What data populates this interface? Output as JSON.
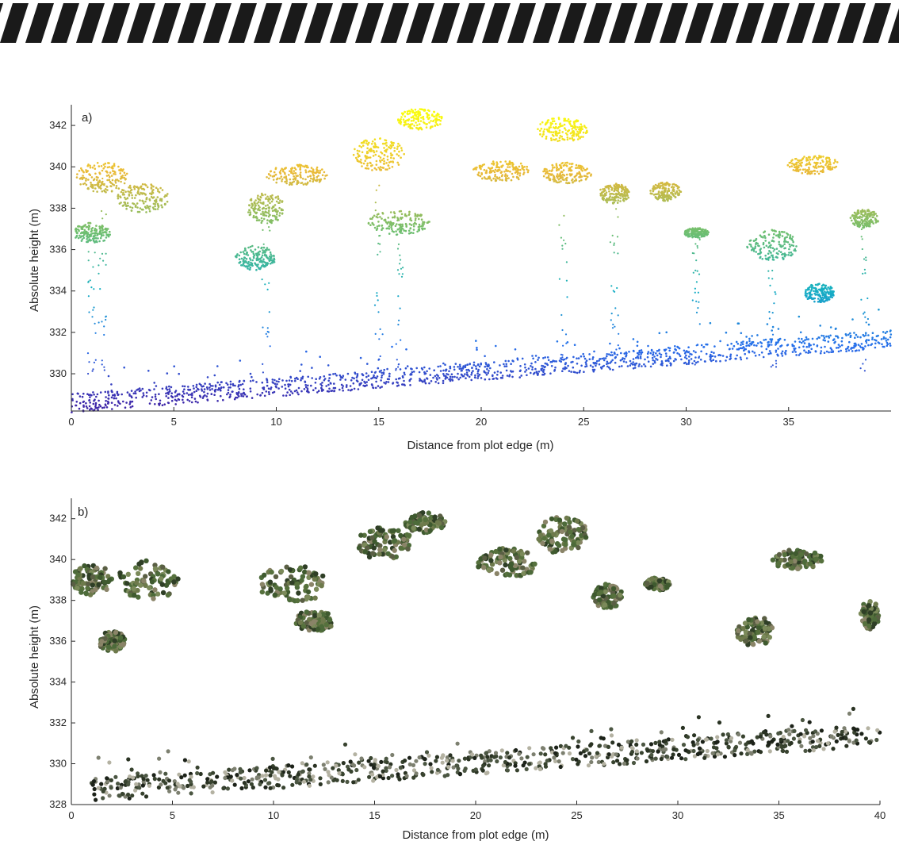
{
  "colors": {
    "banner_stripe": "#1a1a1a",
    "axis": "#262626",
    "low_colormap": "#3e26a8",
    "mid_colormap": "#16b0c2",
    "high_colormap": "#f9fb0e",
    "foliage": "#4a6a35",
    "dark_understory": "#1f261c"
  },
  "chart_data": [
    {
      "panel_label": "a)",
      "type": "scatter",
      "description_type": "point cloud cross-section colored by height (parula colormap)",
      "xlabel": "Distance from plot edge (m)",
      "ylabel": "Absolute height (m)",
      "xlim": [
        0,
        40
      ],
      "ylim": [
        328.2,
        343
      ],
      "x_ticks": [
        0,
        5,
        10,
        15,
        20,
        25,
        30,
        35
      ],
      "y_ticks": [
        330,
        332,
        334,
        336,
        338,
        340,
        342
      ],
      "colormap": "parula",
      "ground_line": {
        "x": [
          0,
          40
        ],
        "y": [
          328.4,
          331.5
        ]
      },
      "canopy_clusters": [
        {
          "x": 1.5,
          "y": 339.5,
          "w": 2.5,
          "h": 1.5
        },
        {
          "x": 3.5,
          "y": 338.5,
          "w": 2.5,
          "h": 1.4
        },
        {
          "x": 1.0,
          "y": 336.8,
          "w": 1.8,
          "h": 1.0
        },
        {
          "x": 11.0,
          "y": 339.6,
          "w": 3.0,
          "h": 1.0
        },
        {
          "x": 9.5,
          "y": 338.0,
          "w": 1.8,
          "h": 1.5
        },
        {
          "x": 9.0,
          "y": 335.6,
          "w": 2.0,
          "h": 1.2
        },
        {
          "x": 15.0,
          "y": 340.6,
          "w": 2.5,
          "h": 1.6
        },
        {
          "x": 17.0,
          "y": 342.3,
          "w": 2.3,
          "h": 1.0
        },
        {
          "x": 16.0,
          "y": 337.3,
          "w": 3.0,
          "h": 1.2
        },
        {
          "x": 21.0,
          "y": 339.8,
          "w": 2.8,
          "h": 1.0
        },
        {
          "x": 24.0,
          "y": 341.8,
          "w": 2.5,
          "h": 1.2
        },
        {
          "x": 24.2,
          "y": 339.7,
          "w": 2.4,
          "h": 1.0
        },
        {
          "x": 26.5,
          "y": 338.7,
          "w": 1.5,
          "h": 1.0
        },
        {
          "x": 29.0,
          "y": 338.8,
          "w": 1.5,
          "h": 0.9
        },
        {
          "x": 30.5,
          "y": 336.8,
          "w": 1.2,
          "h": 0.5
        },
        {
          "x": 36.2,
          "y": 340.1,
          "w": 2.5,
          "h": 0.9
        },
        {
          "x": 34.2,
          "y": 336.2,
          "w": 2.5,
          "h": 1.5
        },
        {
          "x": 36.5,
          "y": 333.9,
          "w": 1.5,
          "h": 0.9
        },
        {
          "x": 38.7,
          "y": 337.5,
          "w": 1.4,
          "h": 0.9
        }
      ]
    },
    {
      "panel_label": "b)",
      "type": "scatter",
      "description_type": "photogrammetric point cloud cross-section in true color",
      "xlabel": "Distance from plot edge (m)",
      "ylabel": "Absolute height (m)",
      "xlim": [
        0,
        40
      ],
      "ylim": [
        328,
        343
      ],
      "x_ticks": [
        0,
        5,
        10,
        15,
        20,
        25,
        30,
        35,
        40
      ],
      "y_ticks": [
        328,
        330,
        332,
        334,
        336,
        338,
        340,
        342
      ],
      "ground_line": {
        "x": [
          1,
          40
        ],
        "y": [
          328.5,
          331.2
        ]
      },
      "canopy_clusters": [
        {
          "x": 1.0,
          "y": 339.0,
          "w": 2.0,
          "h": 1.5
        },
        {
          "x": 3.8,
          "y": 339.0,
          "w": 3.0,
          "h": 2.0
        },
        {
          "x": 2.0,
          "y": 336.0,
          "w": 1.3,
          "h": 1.0
        },
        {
          "x": 11.0,
          "y": 338.8,
          "w": 3.5,
          "h": 1.8
        },
        {
          "x": 12.0,
          "y": 337.0,
          "w": 2.0,
          "h": 1.0
        },
        {
          "x": 15.5,
          "y": 340.8,
          "w": 2.8,
          "h": 1.6
        },
        {
          "x": 17.5,
          "y": 341.8,
          "w": 2.0,
          "h": 1.0
        },
        {
          "x": 21.5,
          "y": 339.8,
          "w": 3.0,
          "h": 1.5
        },
        {
          "x": 24.3,
          "y": 341.2,
          "w": 2.5,
          "h": 1.8
        },
        {
          "x": 26.5,
          "y": 338.2,
          "w": 1.5,
          "h": 1.2
        },
        {
          "x": 29.0,
          "y": 338.8,
          "w": 1.2,
          "h": 0.6
        },
        {
          "x": 35.9,
          "y": 340.0,
          "w": 2.5,
          "h": 1.0
        },
        {
          "x": 33.8,
          "y": 336.5,
          "w": 1.8,
          "h": 1.5
        },
        {
          "x": 39.5,
          "y": 337.3,
          "w": 0.9,
          "h": 1.4
        }
      ]
    }
  ]
}
